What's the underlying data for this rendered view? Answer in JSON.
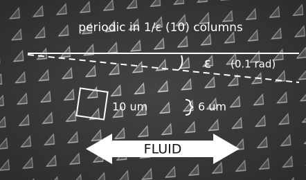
{
  "title": "periodic in 1/ε (10) columns",
  "angle": {
    "symbol": "ε",
    "label": "(0.1 rad)"
  },
  "square_label": "10 um",
  "gap_label": "6 um",
  "arrow_label": "FLUID"
}
